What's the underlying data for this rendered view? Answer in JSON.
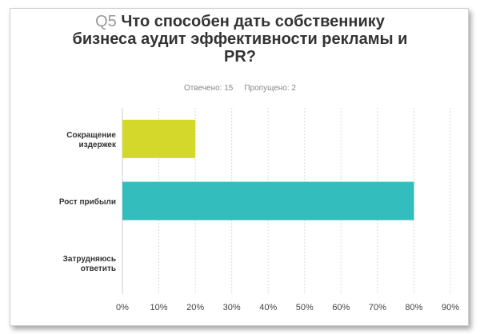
{
  "question": {
    "number": "Q5",
    "text_line1": "Что способен дать собственнику",
    "text_line2": "бизнеса аудит эффективности рекламы и",
    "text_line3": "PR?"
  },
  "stats": {
    "answered": "Отвечено: 15",
    "skipped": "Пропущено: 2"
  },
  "colors": {
    "bar1": "#d4d82a",
    "bar2": "#33bdbd",
    "grid": "#d9d9d9",
    "text": "#333333"
  },
  "chart_data": {
    "type": "bar",
    "orientation": "horizontal",
    "categories": [
      [
        "Сокращение",
        "издержек"
      ],
      [
        "Рост прибыли"
      ],
      [
        "Затрудняюсь",
        "ответить"
      ]
    ],
    "values": [
      20,
      80,
      0
    ],
    "xticks": [
      "0%",
      "10%",
      "20%",
      "30%",
      "40%",
      "50%",
      "60%",
      "70%",
      "80%",
      "90%"
    ],
    "xlim": [
      0,
      90
    ],
    "grid": true
  }
}
